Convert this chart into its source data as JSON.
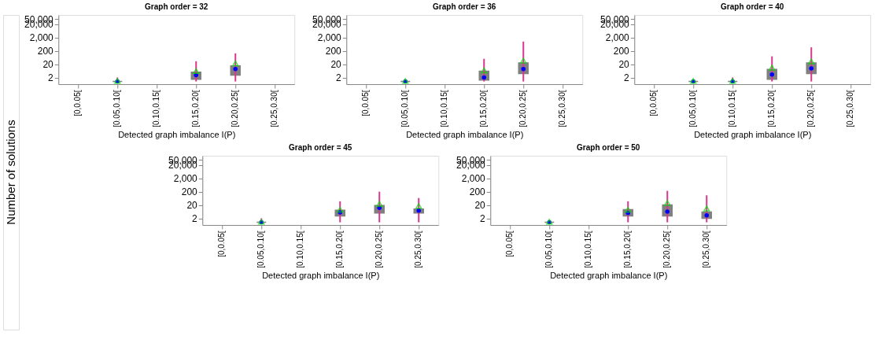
{
  "chart_data": [
    {
      "type": "box",
      "title": "Graph  order = 32",
      "xlabel": "Detected graph imbalance I(P)",
      "ylabel": "Number of solutions",
      "log": true,
      "grid": false,
      "categories": [
        "[0,0.05[",
        "[0.05,0.10[",
        "[0.10,0.15[",
        "[0.15,0.20[",
        "[0.20,0.25[",
        "[0.25,0.30["
      ],
      "ylim": [
        0.63,
        100000
      ],
      "yticks": [
        2,
        20,
        200,
        {
          "value": 2000,
          "label": "2,000"
        },
        {
          "value": 20000,
          "label": "20,000"
        },
        {
          "value": 50000,
          "label": "50,000"
        }
      ],
      "series": [
        {
          "color": "#808080",
          "boxes": [
            null,
            {
              "low": 1,
              "q1": 1,
              "median": 1,
              "q3": 1,
              "high": 2,
              "mean": 1.1
            },
            null,
            {
              "low": 1,
              "q1": 1.5,
              "median": 3,
              "q3": 5,
              "high": 33,
              "mean": 6
            },
            {
              "low": 1,
              "q1": 3,
              "median": 8.7,
              "q3": 15,
              "high": 130,
              "mean": 23
            },
            null
          ]
        }
      ]
    },
    {
      "type": "box",
      "title": "Graph  order = 36",
      "xlabel": "Detected graph imbalance I(P)",
      "log": true,
      "grid": false,
      "categories": [
        "[0,0.05[",
        "[0.05,0.10[",
        "[0.10,0.15[",
        "[0.15,0.20[",
        "[0.20,0.25[",
        "[0.25,0.30["
      ],
      "ylim": [
        0.63,
        100000
      ],
      "yticks": [
        2,
        20,
        200,
        {
          "value": 2000,
          "label": "2,000"
        },
        {
          "value": 20000,
          "label": "20,000"
        },
        {
          "value": 50000,
          "label": "50,000"
        }
      ],
      "series": [
        {
          "color": "#808080",
          "boxes": [
            null,
            {
              "low": 1,
              "q1": 1,
              "median": 1,
              "q3": 1,
              "high": 1,
              "mean": 1.1
            },
            null,
            {
              "low": 1,
              "q1": 1.3,
              "median": 2,
              "q3": 6,
              "high": 51,
              "mean": 6.8
            },
            {
              "low": 1,
              "q1": 4,
              "median": 8.7,
              "q3": 25,
              "high": 1000,
              "mean": 37
            },
            null
          ]
        }
      ]
    },
    {
      "type": "box",
      "title": "Graph  order = 40",
      "xlabel": "Detected graph imbalance I(P)",
      "log": true,
      "grid": false,
      "categories": [
        "[0,0.05[",
        "[0.05,0.10[",
        "[0.10,0.15[",
        "[0.15,0.20[",
        "[0.20,0.25[",
        "[0.25,0.30["
      ],
      "ylim": [
        0.63,
        100000
      ],
      "yticks": [
        2,
        20,
        200,
        {
          "value": 2000,
          "label": "2,000"
        },
        {
          "value": 20000,
          "label": "20,000"
        },
        {
          "value": 50000,
          "label": "50,000"
        }
      ],
      "series": [
        {
          "color": "#808080",
          "boxes": [
            null,
            {
              "low": 1,
              "q1": 1,
              "median": 1,
              "q3": 1,
              "high": 1,
              "mean": 1.1
            },
            {
              "low": 1,
              "q1": 1,
              "median": 1,
              "q3": 1,
              "high": 2,
              "mean": 1.1
            },
            {
              "low": 1,
              "q1": 1.5,
              "median": 3.3,
              "q3": 8,
              "high": 78,
              "mean": 11
            },
            {
              "low": 1,
              "q1": 4,
              "median": 9.7,
              "q3": 25,
              "high": 370,
              "mean": 32
            },
            null
          ]
        }
      ]
    },
    {
      "type": "box",
      "title": "Graph  order = 45",
      "xlabel": "Detected graph imbalance I(P)",
      "log": true,
      "grid": false,
      "categories": [
        "[0,0.05[",
        "[0.05,0.10[",
        "[0.10,0.15[",
        "[0.15,0.20[",
        "[0.20,0.25[",
        "[0.25,0.30["
      ],
      "ylim": [
        0.63,
        100000
      ],
      "yticks": [
        2,
        20,
        200,
        {
          "value": 2000,
          "label": "2,000"
        },
        {
          "value": 20000,
          "label": "20,000"
        },
        {
          "value": 50000,
          "label": "50,000"
        }
      ],
      "series": [
        {
          "color": "#808080",
          "boxes": [
            null,
            {
              "low": 1,
              "q1": 1,
              "median": 1,
              "q3": 1,
              "high": 2,
              "mean": 1.1
            },
            null,
            {
              "low": 1,
              "q1": 3,
              "median": 5.5,
              "q3": 8,
              "high": 38,
              "mean": 8.8
            },
            {
              "low": 1,
              "q1": 5,
              "median": 12,
              "q3": 18,
              "high": 200,
              "mean": 24
            },
            {
              "low": 1,
              "q1": 5,
              "median": 7.6,
              "q3": 10,
              "high": 67,
              "mean": 17
            }
          ]
        }
      ]
    },
    {
      "type": "box",
      "title": "Graph  order = 50",
      "xlabel": "Detected graph imbalance I(P)",
      "log": true,
      "grid": false,
      "categories": [
        "[0,0.05[",
        "[0.05,0.10[",
        "[0.10,0.15[",
        "[0.15,0.20[",
        "[0.20,0.25[",
        "[0.25,0.30["
      ],
      "ylim": [
        0.63,
        100000
      ],
      "yticks": [
        2,
        20,
        200,
        {
          "value": 2000,
          "label": "2,000"
        },
        {
          "value": 20000,
          "label": "20,000"
        },
        {
          "value": 50000,
          "label": "50,000"
        }
      ],
      "series": [
        {
          "color": "#808080",
          "boxes": [
            null,
            {
              "low": 1,
              "q1": 1,
              "median": 1,
              "q3": 1,
              "high": 1,
              "mean": 1.1
            },
            null,
            {
              "low": 1,
              "q1": 3,
              "median": 5.1,
              "q3": 9,
              "high": 38,
              "mean": 8.8
            },
            {
              "low": 1,
              "q1": 3,
              "median": 6.4,
              "q3": 20,
              "high": 232,
              "mean": 29
            },
            {
              "low": 1,
              "q1": 2,
              "median": 3.3,
              "q3": 6,
              "high": 107,
              "mean": 11
            }
          ]
        }
      ]
    }
  ]
}
